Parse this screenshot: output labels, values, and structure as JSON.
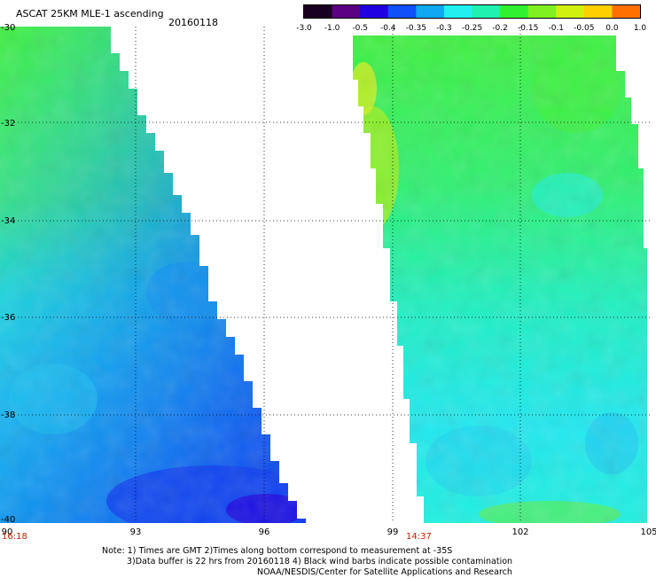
{
  "title": "ASCAT 25KM MLE-1 ascending",
  "date": "20160118",
  "colorbar": {
    "labels": [
      "-3.0",
      "-1.0",
      "-0.5",
      "-0.4",
      "-0.35",
      "-0.3",
      "-0.25",
      "-0.2",
      "-0.15",
      "-0.1",
      "-0.05",
      "0.0",
      "1.0"
    ],
    "colors": [
      "#1a0020",
      "#5a0080",
      "#2000e0",
      "#1050f8",
      "#10a8f0",
      "#20f0f0",
      "#20f0b0",
      "#30f030",
      "#80f020",
      "#d0f010",
      "#ffd000",
      "#ff7000",
      "#ff1000"
    ]
  },
  "axes": {
    "x_ticks": [
      "90",
      "93",
      "96",
      "99",
      "102",
      "105"
    ],
    "y_ticks": [
      "-30",
      "-32",
      "-34",
      "-36",
      "-38",
      "-40"
    ]
  },
  "times": [
    "16:18",
    "14:37"
  ],
  "notes": {
    "line1": "Note: 1) Times are GMT 2)Times along bottom correspond to measurement at -35S",
    "line2": "3)Data buffer is 22 hrs from 20160118 4) Black wind barbs indicate possible contamination",
    "line3": "NOAA/NESDIS/Center for Satellite Applications and Research"
  },
  "style": {
    "swath_green": "#40f040",
    "swath_cyan": "#20f0f0",
    "swath_blue": "#1070f8",
    "swath_deep_blue": "#2010e8",
    "swath_yellow": "#c8f020"
  }
}
